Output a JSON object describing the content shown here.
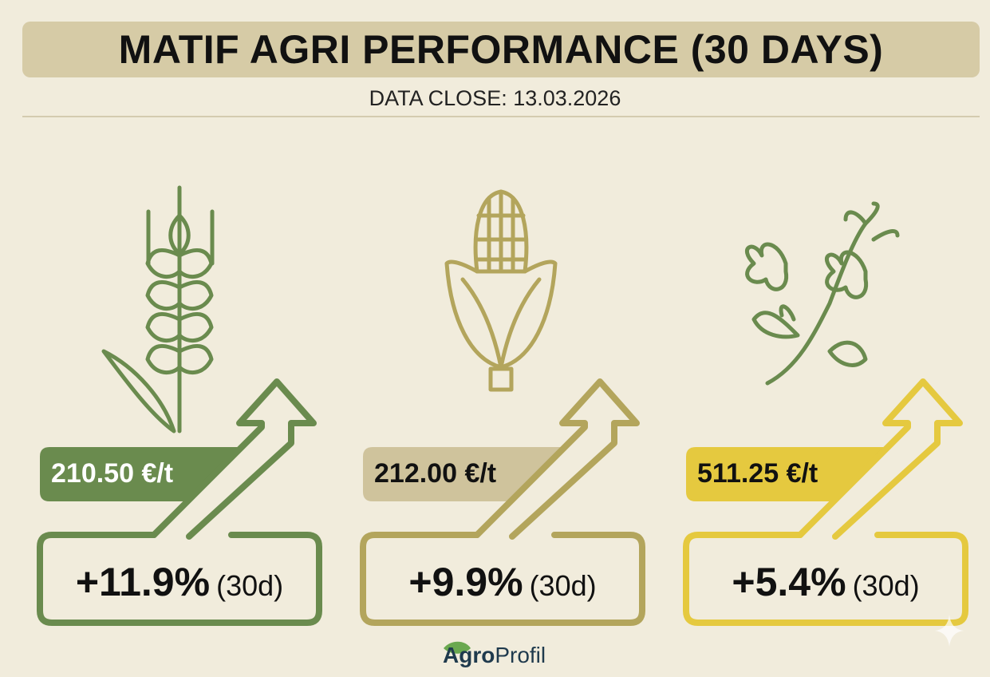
{
  "header": {
    "title": "MATIF AGRI PERFORMANCE (30 DAYS)",
    "subtitle": "DATA CLOSE: 13.03.2026"
  },
  "commodities": [
    {
      "icon": "wheat-icon",
      "price": "210.50 €/t",
      "change": "+11.9%",
      "period": "(30d)",
      "color": "#6a8b4e",
      "label_color": "#6a8b4e",
      "price_text_color": "#ffffff"
    },
    {
      "icon": "corn-icon",
      "price": "212.00 €/t",
      "change": "+9.9%",
      "period": "(30d)",
      "color": "#b3a55c",
      "label_color": "#cfc39c",
      "price_text_color": "#111111"
    },
    {
      "icon": "rapeseed-icon",
      "price": "511.25 €/t",
      "change": "+5.4%",
      "period": "(30d)",
      "color": "#e5c93f",
      "label_color": "#e5c93f",
      "price_text_color": "#111111"
    }
  ],
  "footer": {
    "logo_bold": "Agro",
    "logo_regular": "Profil"
  }
}
